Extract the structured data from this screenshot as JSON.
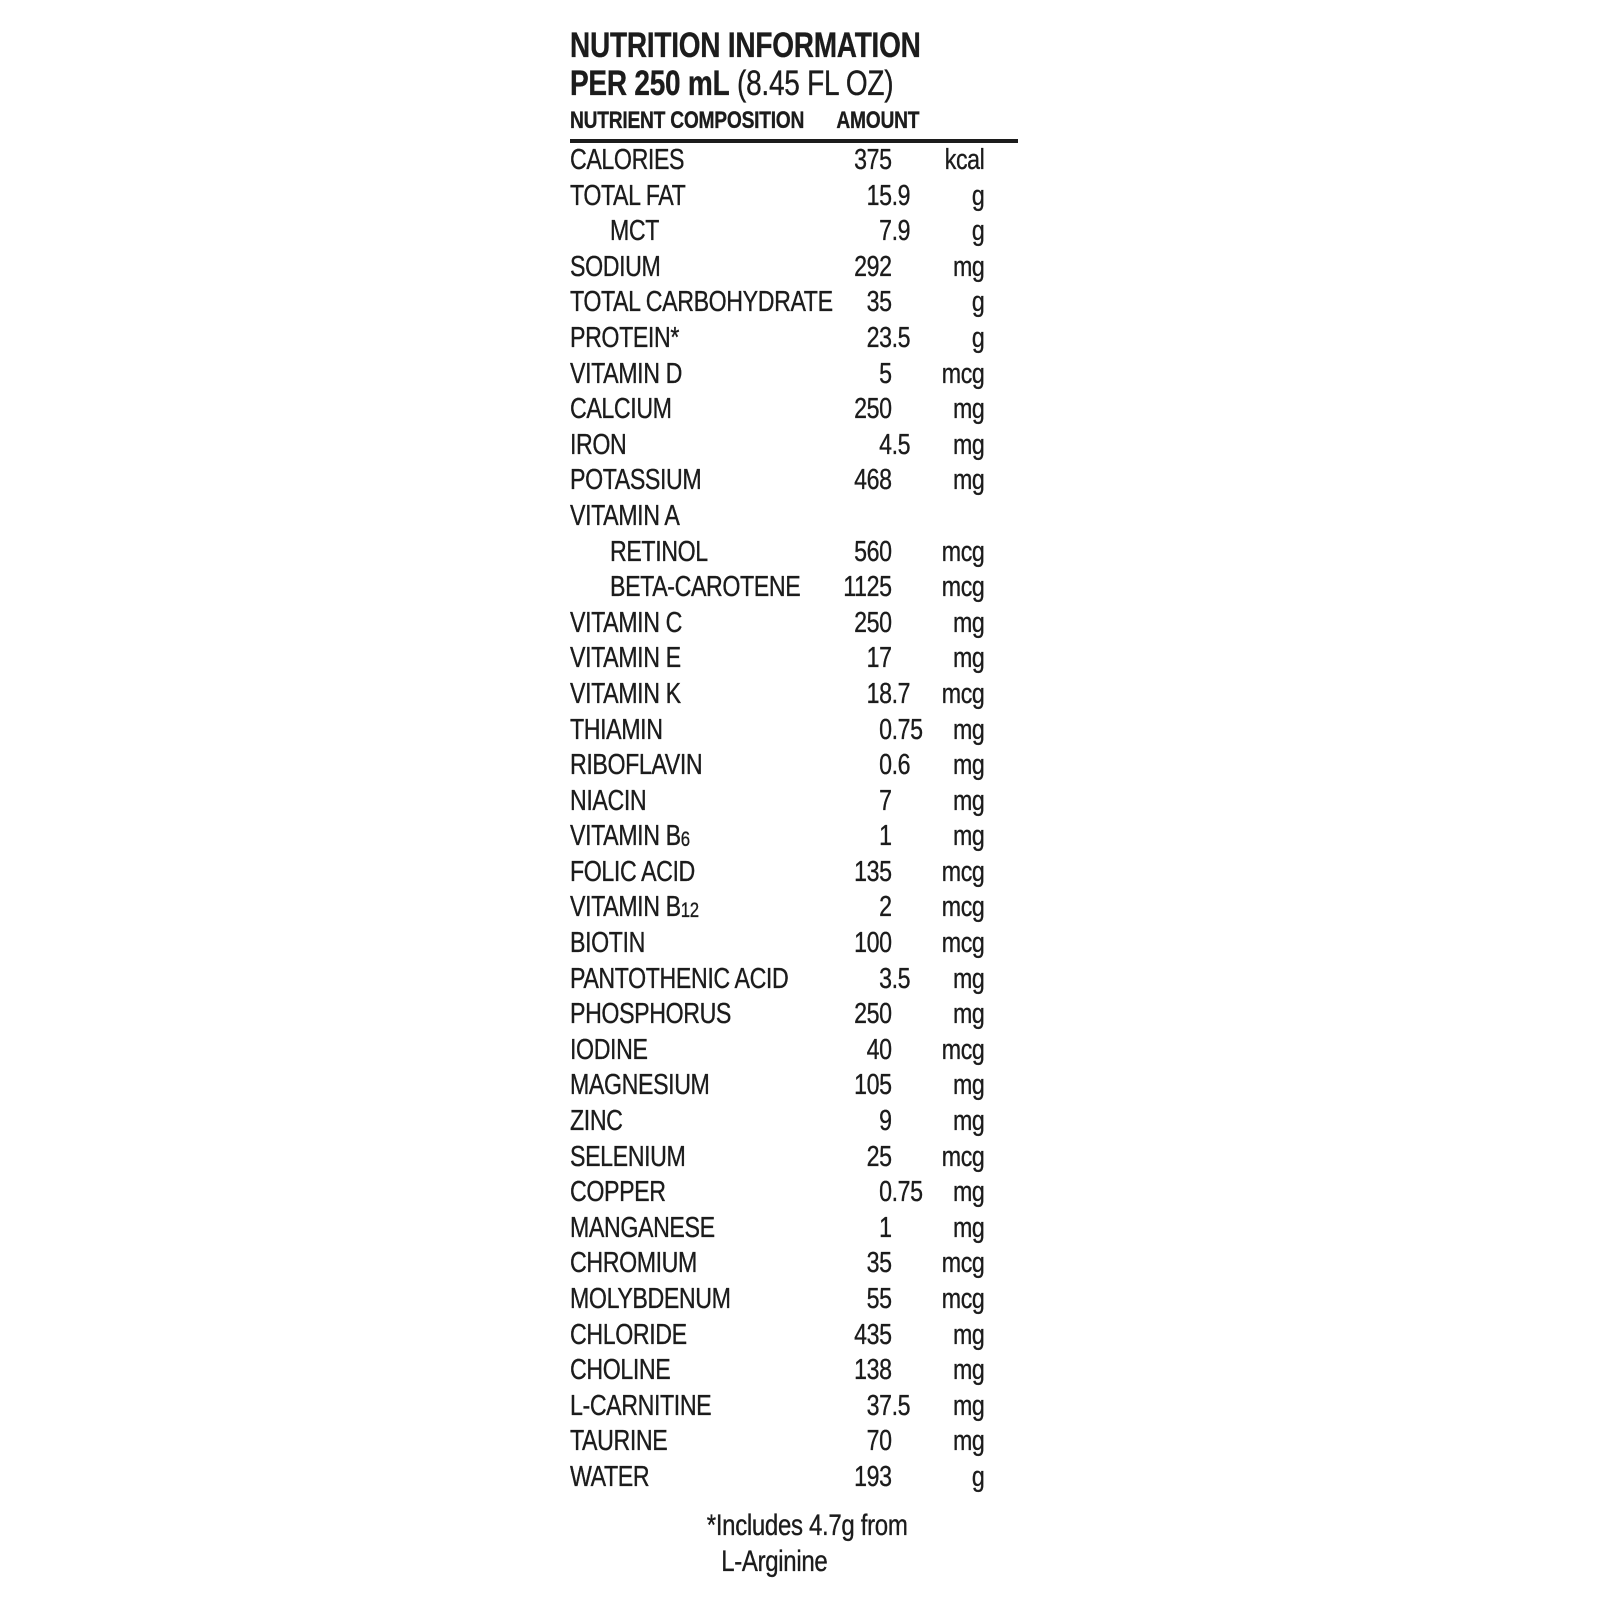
{
  "header": {
    "title": "NUTRITION INFORMATION",
    "serving_bold": "PER 250 mL",
    "serving_rest": " (8.45 FL OZ)",
    "col_nutrient": "NUTRIENT COMPOSITION",
    "col_amount": "AMOUNT"
  },
  "rows": [
    {
      "label": "CALORIES",
      "value": "375",
      "unit": "kcal"
    },
    {
      "label": "TOTAL FAT",
      "value": "15.9",
      "unit": "g"
    },
    {
      "label": "MCT",
      "value": "7.9",
      "unit": "g",
      "indent": 1
    },
    {
      "label": "SODIUM",
      "value": "292",
      "unit": "mg"
    },
    {
      "label": "TOTAL CARBOHYDRATE",
      "value": "35",
      "unit": "g"
    },
    {
      "label": "PROTEIN*",
      "value": "23.5",
      "unit": "g"
    },
    {
      "label": "VITAMIN D",
      "value": "5",
      "unit": "mcg"
    },
    {
      "label": "CALCIUM",
      "value": "250",
      "unit": "mg"
    },
    {
      "label": "IRON",
      "value": "4.5",
      "unit": "mg"
    },
    {
      "label": "POTASSIUM",
      "value": "468",
      "unit": "mg"
    },
    {
      "label": "VITAMIN A",
      "value": "",
      "unit": ""
    },
    {
      "label": "RETINOL",
      "value": "560",
      "unit": "mcg",
      "indent": 1
    },
    {
      "label": "BETA-CAROTENE",
      "value": "1125",
      "unit": "mcg",
      "indent": 1
    },
    {
      "label": "VITAMIN C",
      "value": "250",
      "unit": "mg"
    },
    {
      "label": "VITAMIN E",
      "value": "17",
      "unit": "mg"
    },
    {
      "label": "VITAMIN K",
      "value": "18.7",
      "unit": "mcg"
    },
    {
      "label": "THIAMIN",
      "value": "0.75",
      "unit": "mg"
    },
    {
      "label": "RIBOFLAVIN",
      "value": "0.6",
      "unit": "mg"
    },
    {
      "label": "NIACIN",
      "value": "7",
      "unit": "mg"
    },
    {
      "label": "VITAMIN B",
      "sub": "6",
      "value": "1",
      "unit": "mg"
    },
    {
      "label": "FOLIC ACID",
      "value": "135",
      "unit": "mcg"
    },
    {
      "label": "VITAMIN B",
      "sub": "12",
      "value": "2",
      "unit": "mcg"
    },
    {
      "label": "BIOTIN",
      "value": "100",
      "unit": "mcg"
    },
    {
      "label": "PANTOTHENIC ACID",
      "value": "3.5",
      "unit": "mg"
    },
    {
      "label": "PHOSPHORUS",
      "value": "250",
      "unit": "mg"
    },
    {
      "label": "IODINE",
      "value": "40",
      "unit": "mcg"
    },
    {
      "label": "MAGNESIUM",
      "value": "105",
      "unit": "mg"
    },
    {
      "label": "ZINC",
      "value": "9",
      "unit": "mg"
    },
    {
      "label": "SELENIUM",
      "value": "25",
      "unit": "mcg"
    },
    {
      "label": "COPPER",
      "value": "0.75",
      "unit": "mg"
    },
    {
      "label": "MANGANESE",
      "value": "1",
      "unit": "mg"
    },
    {
      "label": "CHROMIUM",
      "value": "35",
      "unit": "mcg"
    },
    {
      "label": "MOLYBDENUM",
      "value": "55",
      "unit": "mcg"
    },
    {
      "label": "CHLORIDE",
      "value": "435",
      "unit": "mg"
    },
    {
      "label": "CHOLINE",
      "value": "138",
      "unit": "mg"
    },
    {
      "label": "L-CARNITINE",
      "value": "37.5",
      "unit": "mg"
    },
    {
      "label": "TAURINE",
      "value": "70",
      "unit": "mg"
    },
    {
      "label": "WATER",
      "value": "193",
      "unit": "g"
    }
  ],
  "footnote": {
    "line1": "*Includes 4.7g from",
    "line2": "L-Arginine"
  },
  "colors": {
    "ink": "#1c1c1c",
    "background": "#ffffff"
  }
}
